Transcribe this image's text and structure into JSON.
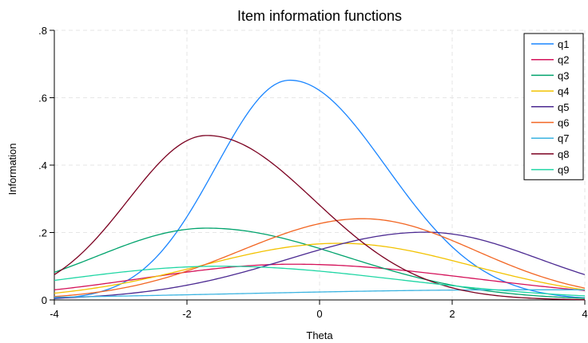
{
  "chart_data": {
    "type": "line",
    "title": "Item information functions",
    "xlabel": "Theta",
    "ylabel": "Information",
    "xlim": [
      -4,
      4
    ],
    "ylim": [
      0,
      0.8
    ],
    "xticks": [
      -4,
      -2,
      0,
      2,
      4
    ],
    "xtick_labels": [
      "-4",
      "-2",
      "0",
      "2",
      "4"
    ],
    "yticks": [
      0,
      0.2,
      0.4,
      0.6,
      0.8
    ],
    "ytick_labels": [
      "0",
      ".2",
      ".4",
      ".6",
      ".8"
    ],
    "grid": true,
    "legend_position": "top-right",
    "series": [
      {
        "name": "q1",
        "color": "#1a85ff",
        "peak_theta": -0.45,
        "peak_info": 0.652,
        "end_left": 0.004,
        "end_right": 0.006
      },
      {
        "name": "q2",
        "color": "#d41159",
        "peak_theta": -0.4,
        "peak_info": 0.106,
        "end_left": 0.03,
        "end_right": 0.028
      },
      {
        "name": "q3",
        "color": "#00a36c",
        "peak_theta": -1.7,
        "peak_info": 0.213,
        "end_left": 0.082,
        "end_right": 0.005
      },
      {
        "name": "q4",
        "color": "#f2c200",
        "peak_theta": 0.3,
        "peak_info": 0.168,
        "end_left": 0.02,
        "end_right": 0.03
      },
      {
        "name": "q5",
        "color": "#4b2991",
        "peak_theta": 1.6,
        "peak_info": 0.201,
        "end_left": 0.005,
        "end_right": 0.075
      },
      {
        "name": "q6",
        "color": "#f26522",
        "peak_theta": 0.65,
        "peak_info": 0.241,
        "end_left": 0.01,
        "end_right": 0.035
      },
      {
        "name": "q7",
        "color": "#3bb3e0",
        "peak_theta": 3.0,
        "peak_info": 0.03,
        "end_left": 0.008,
        "end_right": 0.03
      },
      {
        "name": "q8",
        "color": "#7b0020",
        "peak_theta": -1.7,
        "peak_info": 0.488,
        "end_left": 0.075,
        "end_right": 0.001
      },
      {
        "name": "q9",
        "color": "#1fd6a4",
        "peak_theta": -1.5,
        "peak_info": 0.1,
        "end_left": 0.058,
        "end_right": 0.012
      }
    ]
  }
}
